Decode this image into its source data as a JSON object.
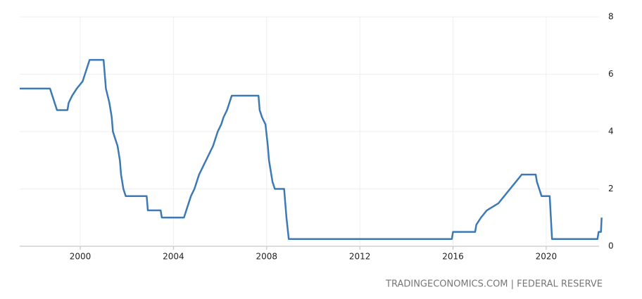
{
  "chart_data": {
    "type": "line",
    "source": "TRADINGECONOMICS.COM | FEDERAL RESERVE",
    "x": [
      1997.4,
      1998.7,
      1998.8,
      1998.9,
      1999.0,
      1999.45,
      1999.5,
      1999.65,
      1999.85,
      2000.1,
      2000.2,
      2000.4,
      2001.0,
      2001.05,
      2001.1,
      2001.25,
      2001.35,
      2001.4,
      2001.5,
      2001.6,
      2001.7,
      2001.75,
      2001.85,
      2001.95,
      2002.85,
      2002.9,
      2003.45,
      2003.5,
      2004.45,
      2004.55,
      2004.65,
      2004.75,
      2004.9,
      2005.0,
      2005.1,
      2005.25,
      2005.4,
      2005.55,
      2005.7,
      2005.8,
      2005.9,
      2006.05,
      2006.15,
      2006.3,
      2006.4,
      2006.5,
      2007.65,
      2007.7,
      2007.8,
      2007.95,
      2008.05,
      2008.1,
      2008.25,
      2008.35,
      2008.75,
      2008.8,
      2008.85,
      2008.95,
      2015.95,
      2016.0,
      2016.95,
      2017.0,
      2017.2,
      2017.45,
      2017.95,
      2018.2,
      2018.45,
      2018.7,
      2018.95,
      2019.55,
      2019.6,
      2019.7,
      2019.8,
      2020.15,
      2020.2,
      2020.25,
      2022.2,
      2022.25,
      2022.35,
      2022.38
    ],
    "series": [
      {
        "color": "#3d7ab5",
        "values": [
          5.5,
          5.5,
          5.25,
          5.0,
          4.75,
          4.75,
          5.0,
          5.25,
          5.5,
          5.75,
          6.0,
          6.5,
          6.5,
          6.0,
          5.5,
          5.0,
          4.5,
          4.0,
          3.75,
          3.5,
          3.0,
          2.5,
          2.0,
          1.75,
          1.75,
          1.25,
          1.25,
          1.0,
          1.0,
          1.25,
          1.5,
          1.75,
          2.0,
          2.25,
          2.5,
          2.75,
          3.0,
          3.25,
          3.5,
          3.75,
          4.0,
          4.25,
          4.5,
          4.75,
          5.0,
          5.25,
          5.25,
          4.75,
          4.5,
          4.25,
          3.5,
          3.0,
          2.25,
          2.0,
          2.0,
          1.5,
          1.0,
          0.25,
          0.25,
          0.5,
          0.5,
          0.75,
          1.0,
          1.25,
          1.5,
          1.75,
          2.0,
          2.25,
          2.5,
          2.5,
          2.25,
          2.0,
          1.75,
          1.75,
          1.0,
          0.25,
          0.25,
          0.5,
          0.5,
          1.0
        ]
      }
    ],
    "xlim": [
      1997.4,
      2022.45
    ],
    "xticks": [
      2000,
      2004,
      2008,
      2012,
      2016,
      2020
    ],
    "ylim": [
      0,
      8
    ],
    "yticks": [
      0,
      2,
      4,
      6,
      8
    ],
    "grid": true
  }
}
